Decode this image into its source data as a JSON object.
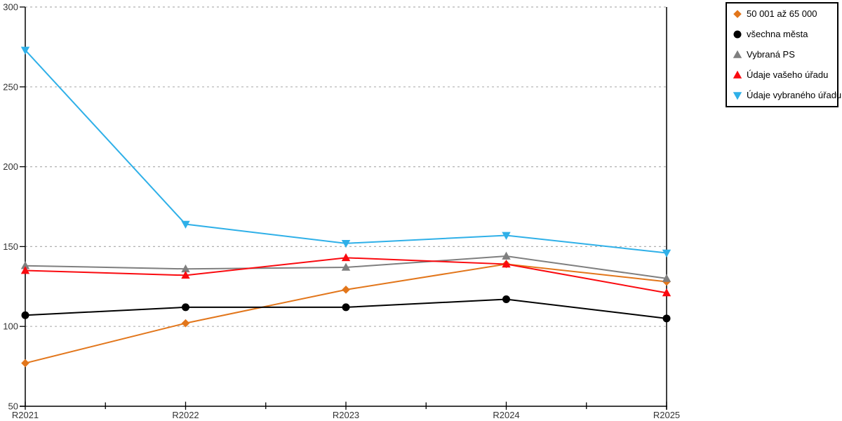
{
  "chart_data": {
    "type": "line",
    "title": "",
    "xlabel": "",
    "ylabel": "",
    "categories": [
      "R2021",
      "R2022",
      "R2023",
      "R2024",
      "R2025"
    ],
    "y_ticks": [
      50,
      100,
      150,
      200,
      250,
      300
    ],
    "ylim": [
      50,
      300
    ],
    "grid": "horizontal dotted lines at every 50",
    "legend_position": "top-right outside plot, boxed",
    "series": [
      {
        "name": "50 001 až 65 000",
        "marker": "diamond",
        "color": "#E2761B",
        "values": [
          77,
          102,
          123,
          139,
          128
        ]
      },
      {
        "name": "všechna města",
        "marker": "circle",
        "color": "#000000",
        "values": [
          107,
          112,
          112,
          117,
          105
        ]
      },
      {
        "name": "Vybraná PS",
        "marker": "triangle-up",
        "color": "#7F7F7F",
        "values": [
          138,
          136,
          137,
          144,
          130
        ]
      },
      {
        "name": "Údaje vašeho úřadu",
        "marker": "triangle-up",
        "color": "#FA0A0F",
        "values": [
          135,
          132,
          143,
          139,
          121
        ]
      },
      {
        "name": "Údaje vybraného úřadu",
        "marker": "triangle-down",
        "color": "#2FB0E8",
        "values": [
          273,
          164,
          152,
          157,
          146
        ]
      }
    ]
  },
  "colors": {
    "background": "#FFFFFF",
    "axis": "#000000",
    "grid": "#B0B0B0",
    "tick_label": "#333333",
    "legend_border": "#000000"
  }
}
